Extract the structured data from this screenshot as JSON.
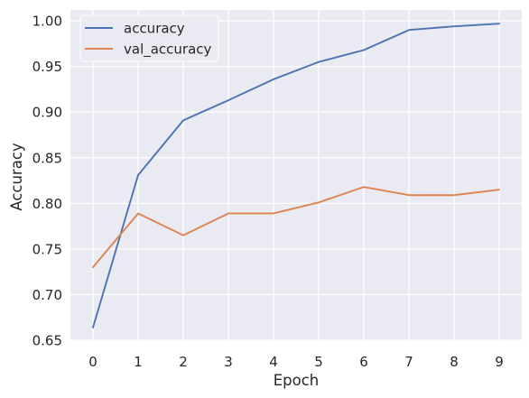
{
  "chart_data": {
    "type": "line",
    "title": "",
    "xlabel": "Epoch",
    "ylabel": "Accuracy",
    "x": [
      0,
      1,
      2,
      3,
      4,
      5,
      6,
      7,
      8,
      9
    ],
    "xticks": [
      "0",
      "1",
      "2",
      "3",
      "4",
      "5",
      "6",
      "7",
      "8",
      "9"
    ],
    "yticks": [
      "0.65",
      "0.70",
      "0.75",
      "0.80",
      "0.85",
      "0.90",
      "0.95",
      "1.00"
    ],
    "xlim": [
      -0.5,
      9.5
    ],
    "ylim": [
      0.65,
      1.012
    ],
    "grid": true,
    "legend_position": "top-left",
    "series": [
      {
        "name": "accuracy",
        "color": "#4c72b0",
        "values": [
          0.664,
          0.831,
          0.891,
          0.913,
          0.936,
          0.955,
          0.968,
          0.99,
          0.994,
          0.997
        ]
      },
      {
        "name": "val_accuracy",
        "color": "#dd8452",
        "values": [
          0.73,
          0.789,
          0.765,
          0.789,
          0.789,
          0.801,
          0.818,
          0.809,
          0.809,
          0.815
        ]
      }
    ]
  }
}
